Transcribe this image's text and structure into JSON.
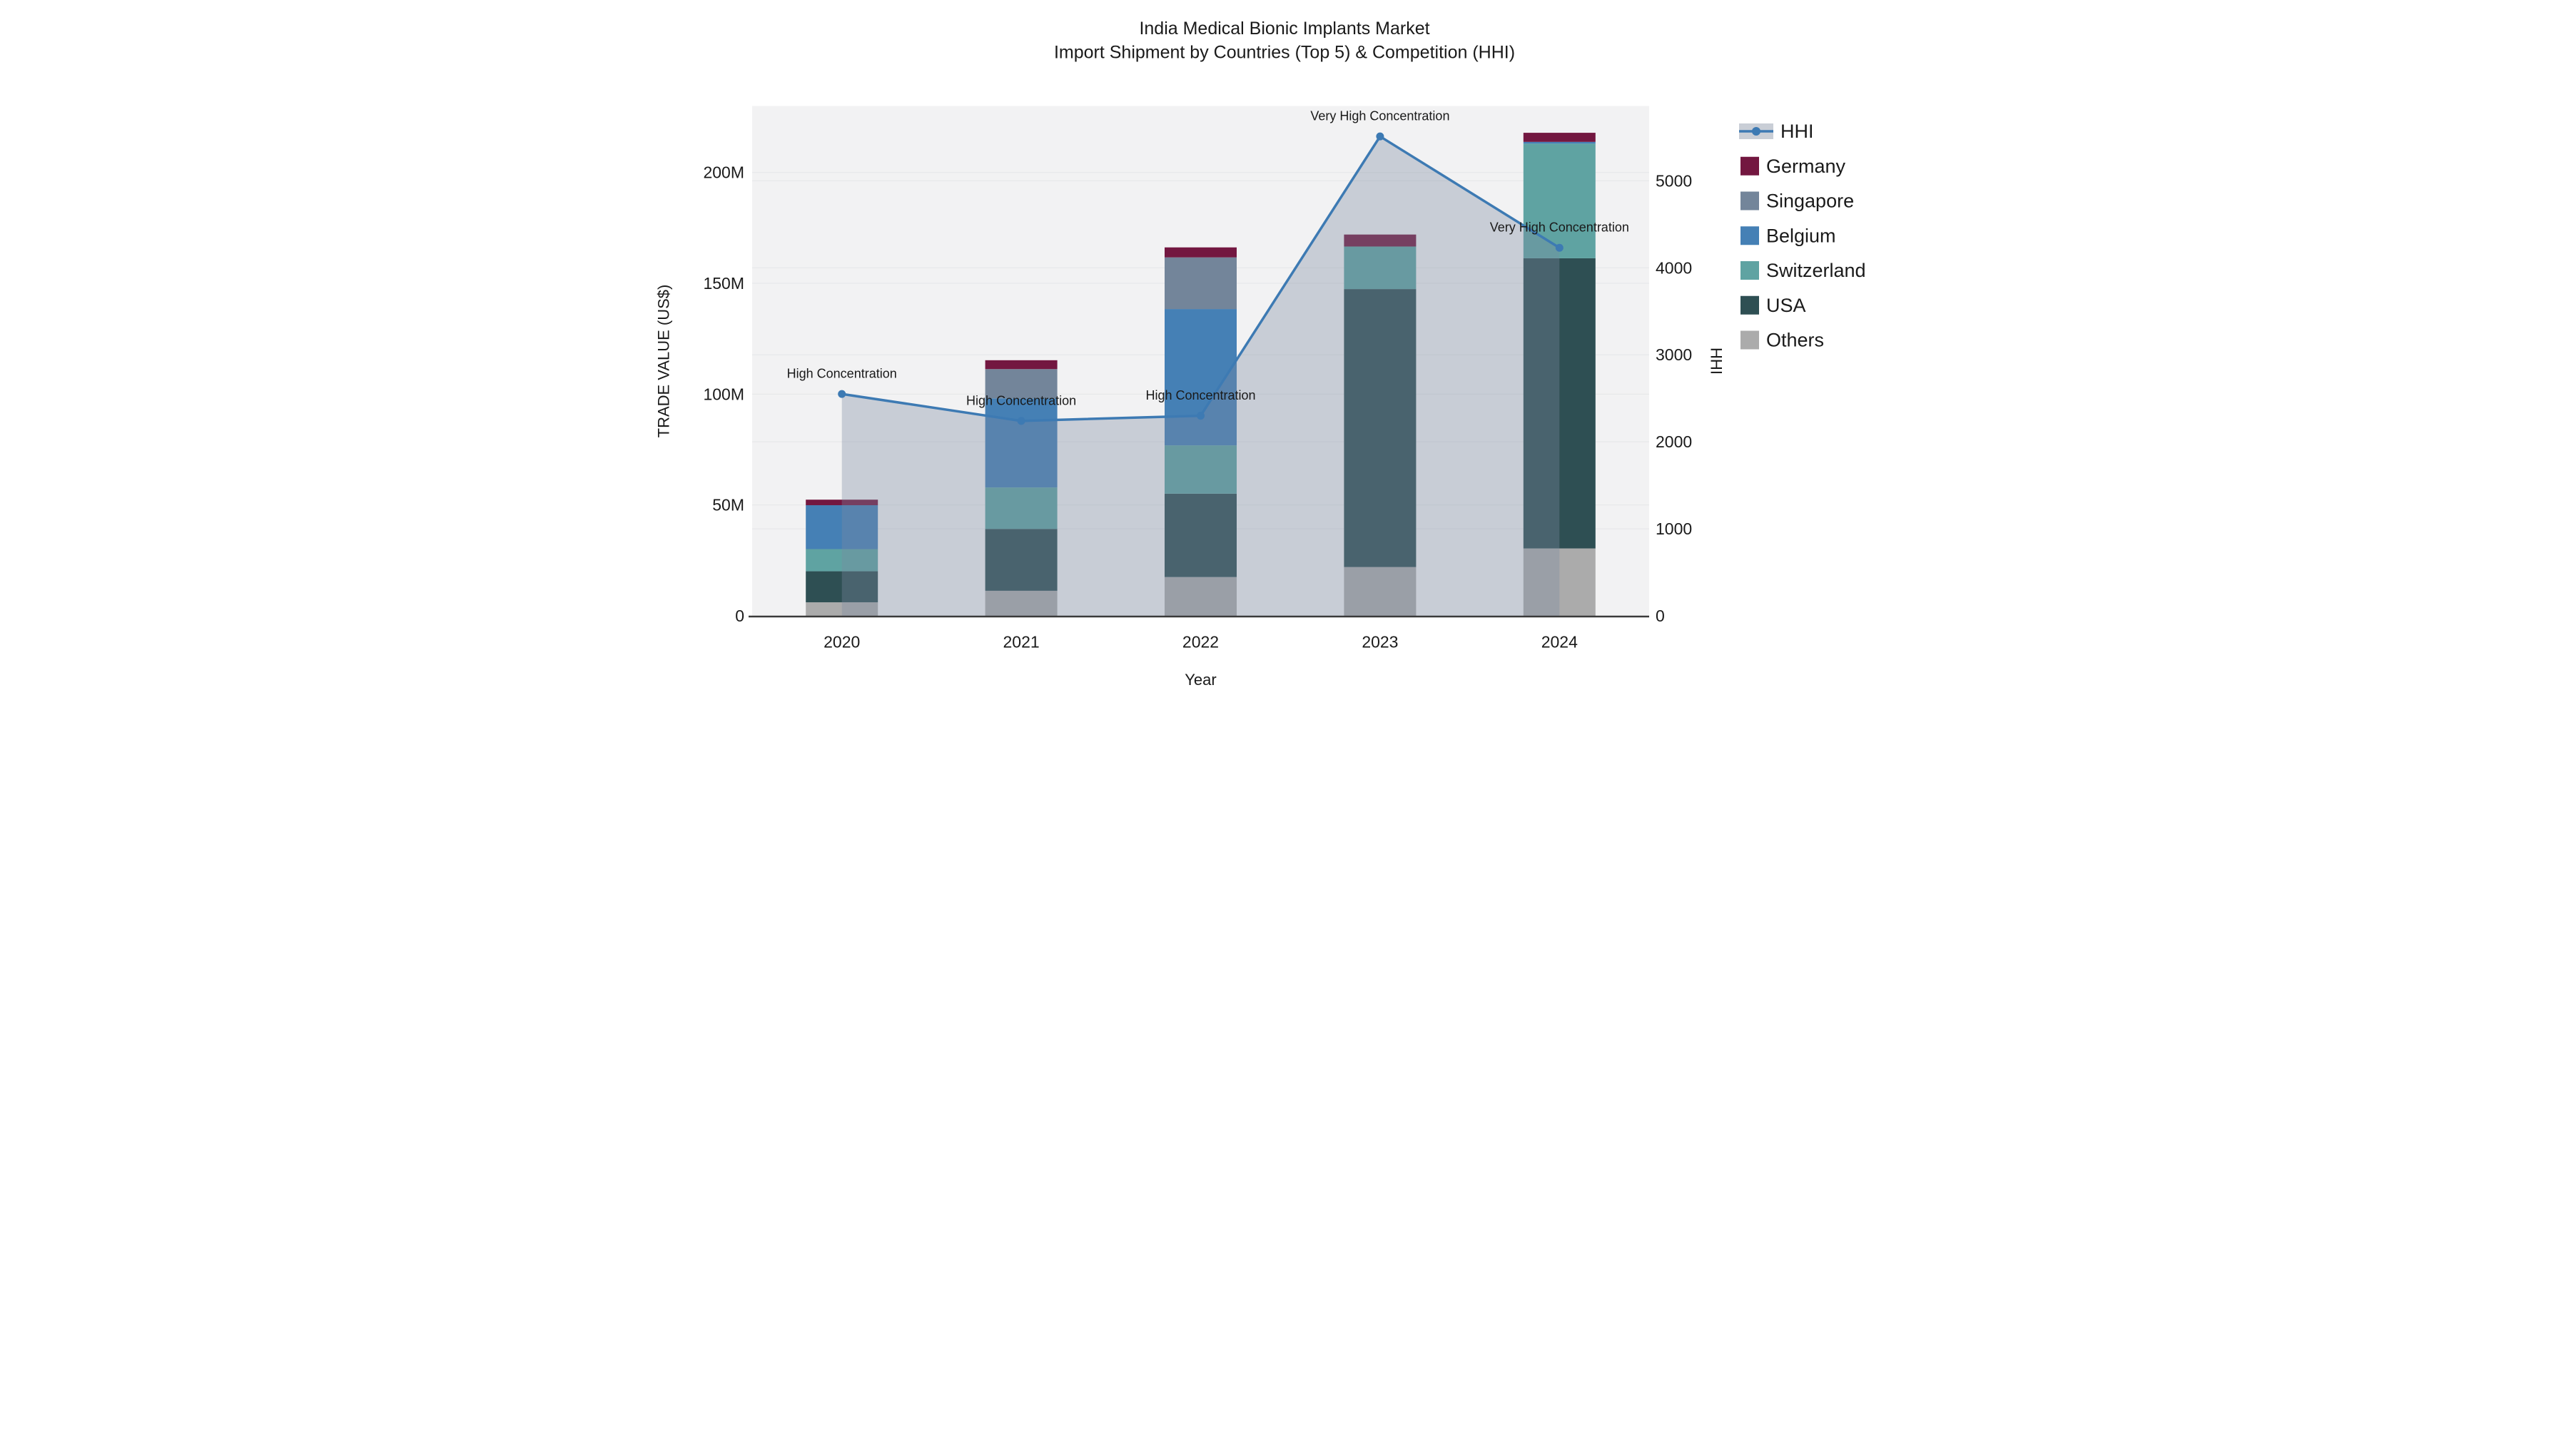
{
  "chart_data": {
    "type": "bar",
    "subtype": "stacked-bars-with-line-area-overlay",
    "title_line1": "India Medical Bionic Implants Market",
    "title_line2": "Import Shipment by Countries (Top 5) & Competition (HHI)",
    "xlabel": "Year",
    "ylabel_left": "TRADE VALUE (US$)",
    "ylabel_right": "HHI",
    "categories": [
      "2020",
      "2021",
      "2022",
      "2023",
      "2024"
    ],
    "value_unit": "millions US$",
    "series": [
      {
        "name": "Others",
        "color": "#ABABAB",
        "values": [
          6.1,
          11.3,
          17.5,
          22.0,
          30.4
        ]
      },
      {
        "name": "USA",
        "color": "#2E4F53",
        "values": [
          14.0,
          27.9,
          37.6,
          125.4,
          130.9
        ]
      },
      {
        "name": "Switzerland",
        "color": "#5FA3A2",
        "values": [
          10.0,
          18.7,
          21.8,
          19.2,
          51.7
        ]
      },
      {
        "name": "Belgium",
        "color": "#4580B5",
        "values": [
          19.8,
          40.2,
          61.5,
          0.0,
          0.8
        ]
      },
      {
        "name": "Singapore",
        "color": "#73859A",
        "values": [
          0.0,
          13.2,
          23.3,
          0.0,
          0.0
        ]
      },
      {
        "name": "Germany",
        "color": "#731740",
        "values": [
          2.5,
          4.0,
          4.5,
          5.4,
          4.1
        ]
      }
    ],
    "bar_totals": [
      52.4,
      115.3,
      166.2,
      172.0,
      217.9
    ],
    "hhi": {
      "name": "HHI",
      "line_color": "#3D7AB3",
      "area_fill": "rgba(122,138,160,0.35)",
      "values": [
        2550,
        2240,
        2300,
        5510,
        4230
      ]
    },
    "annotations": [
      {
        "category": "2020",
        "text": "High Concentration"
      },
      {
        "category": "2021",
        "text": "High Concentration"
      },
      {
        "category": "2022",
        "text": "High Concentration"
      },
      {
        "category": "2023",
        "text": "Very High Concentration"
      },
      {
        "category": "2024",
        "text": "Very High Concentration"
      }
    ],
    "y_left": {
      "tick_labels": [
        "0",
        "50M",
        "100M",
        "150M",
        "200M"
      ],
      "tick_values": [
        0,
        50,
        100,
        150,
        200
      ],
      "range": [
        0,
        230
      ]
    },
    "y_right": {
      "tick_labels": [
        "0",
        "1000",
        "2000",
        "3000",
        "4000",
        "5000"
      ],
      "tick_values": [
        0,
        1000,
        2000,
        3000,
        4000,
        5000
      ],
      "range": [
        0,
        5860
      ]
    },
    "legend_order": [
      "HHI",
      "Germany",
      "Singapore",
      "Belgium",
      "Switzerland",
      "USA",
      "Others"
    ],
    "style": {
      "plot_bg": "#F2F2F3",
      "grid_color": "#E7E8EA",
      "axis_line_color": "#3A3A3A",
      "legend_hhi_band": "#C9CED6"
    }
  }
}
